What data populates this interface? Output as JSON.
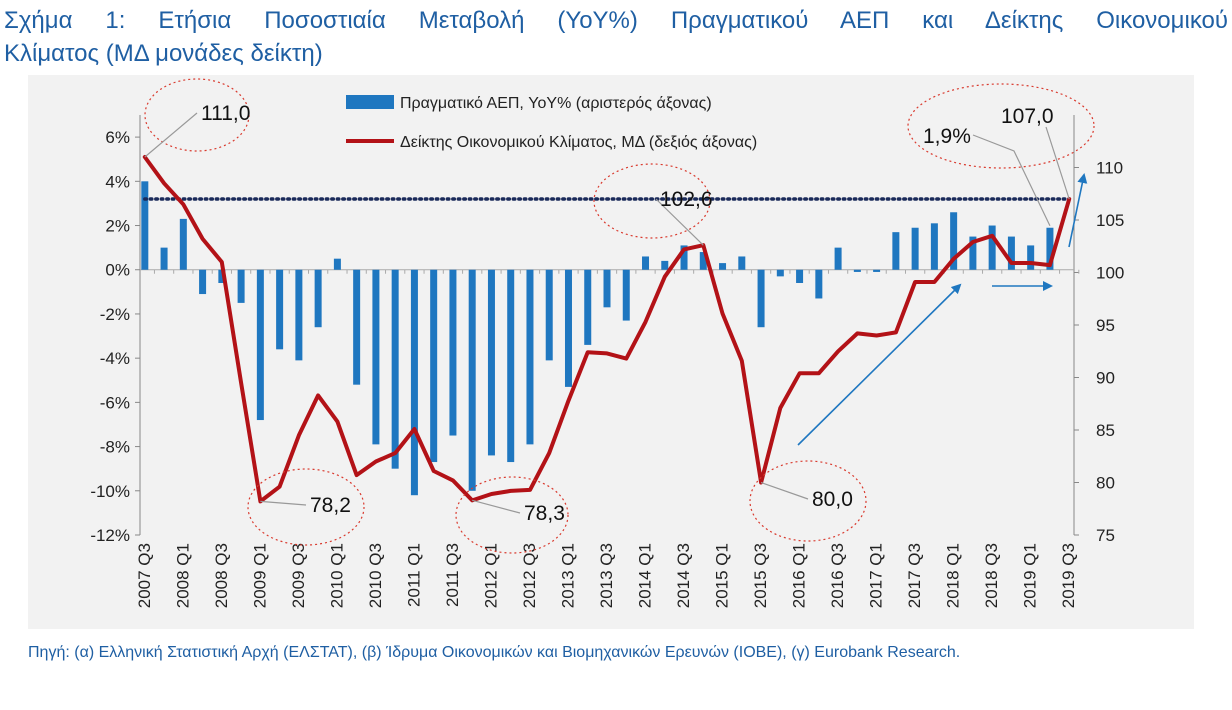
{
  "title": {
    "line1": "Σχήμα 1: Ετήσια Ποσοστιαία Μεταβολή (YoY%) Πραγματικού ΑΕΠ και Δείκτης Οικονομικού",
    "line2": "Κλίματος (ΜΔ μονάδες δείκτη)"
  },
  "source": "Πηγή: (α) Ελληνική Στατιστική Αρχή (ΕΛΣΤΑΤ), (β) Ίδρυμα Οικονομικών και Βιομηχανικών Ερευνών (ΙΟΒΕ), (γ) Eurobank Research.",
  "colors": {
    "title": "#1f5fa3",
    "bars": "#1f77c0",
    "line": "#b31217",
    "dotted": "#1a2a5a",
    "arrows": "#1f77c0",
    "callout_ellipse": "#d93a2e",
    "background": "#f2f2f2"
  },
  "chart_data": {
    "type": "bar+line",
    "title": "",
    "legend_position": "top-center",
    "legend": [
      {
        "label": "Πραγματικό ΑΕΠ, YoY% (αριστερός άξονας)",
        "kind": "bar"
      },
      {
        "label": "Δείκτης Οικονομικού Κλίματος, ΜΔ (δεξιός άξονας)",
        "kind": "line"
      }
    ],
    "categories": [
      "2007 Q3",
      "2007 Q4",
      "2008 Q1",
      "2008 Q2",
      "2008 Q3",
      "2008 Q4",
      "2009 Q1",
      "2009 Q2",
      "2009 Q3",
      "2009 Q4",
      "2010 Q1",
      "2010 Q2",
      "2010 Q3",
      "2010 Q4",
      "2011 Q1",
      "2011 Q2",
      "2011 Q3",
      "2011 Q4",
      "2012 Q1",
      "2012 Q2",
      "2012 Q3",
      "2012 Q4",
      "2013 Q1",
      "2013 Q2",
      "2013 Q3",
      "2013 Q4",
      "2014 Q1",
      "2014 Q2",
      "2014 Q3",
      "2014 Q4",
      "2015 Q1",
      "2015 Q2",
      "2015 Q3",
      "2015 Q4",
      "2016 Q1",
      "2016 Q2",
      "2016 Q3",
      "2016 Q4",
      "2017 Q1",
      "2017 Q2",
      "2017 Q3",
      "2017 Q4",
      "2018 Q1",
      "2018 Q2",
      "2018 Q3",
      "2018 Q4",
      "2019 Q1",
      "2019 Q2",
      "2019 Q3"
    ],
    "x_tick_labels": [
      "2007 Q3",
      "2008 Q1",
      "2008 Q3",
      "2009 Q1",
      "2009 Q3",
      "2010 Q1",
      "2010 Q3",
      "2011 Q1",
      "2011 Q3",
      "2012 Q1",
      "2012 Q3",
      "2013 Q1",
      "2013 Q3",
      "2014 Q1",
      "2014 Q3",
      "2015 Q1",
      "2015 Q3",
      "2016 Q1",
      "2016 Q3",
      "2017 Q1",
      "2017 Q3",
      "2018 Q1",
      "2018 Q3",
      "2019 Q1",
      "2019 Q3"
    ],
    "series": [
      {
        "name": "Πραγματικό ΑΕΠ, YoY% (αριστερός άξονας)",
        "type": "bar",
        "axis": "left",
        "values": [
          4.0,
          1.0,
          2.3,
          -1.1,
          -0.6,
          -1.5,
          -6.8,
          -3.6,
          -4.1,
          -2.6,
          0.5,
          -5.2,
          -7.9,
          -9.0,
          -10.2,
          -8.7,
          -7.5,
          -10.0,
          -8.4,
          -8.7,
          -7.9,
          -4.1,
          -5.3,
          -3.4,
          -1.7,
          -2.3,
          0.6,
          0.4,
          1.1,
          0.8,
          0.3,
          0.6,
          -2.6,
          -0.3,
          -0.6,
          -1.3,
          1.0,
          -0.1,
          -0.1,
          1.7,
          1.9,
          2.1,
          2.6,
          1.5,
          2.0,
          1.5,
          1.1,
          1.9,
          0.0
        ]
      },
      {
        "name": "Δείκτης Οικονομικού Κλίματος, ΜΔ (δεξιός άξονας)",
        "type": "line",
        "axis": "right",
        "values": [
          111.0,
          108.5,
          106.5,
          103.2,
          101.0,
          89.5,
          78.2,
          79.6,
          84.5,
          88.3,
          85.8,
          80.7,
          82.0,
          82.8,
          85.1,
          81.1,
          80.2,
          78.3,
          78.9,
          79.2,
          79.3,
          82.8,
          87.8,
          92.4,
          92.3,
          91.8,
          95.3,
          99.6,
          102.2,
          102.6,
          96.1,
          91.6,
          80.0,
          87.1,
          90.4,
          90.4,
          92.5,
          94.2,
          94.0,
          94.3,
          99.1,
          99.1,
          101.3,
          102.9,
          103.5,
          100.9,
          100.9,
          100.7,
          107.0
        ]
      }
    ],
    "y_left": {
      "min": -12,
      "max": 7,
      "ticks": [
        -12,
        -10,
        -8,
        -6,
        -4,
        -2,
        0,
        2,
        4,
        6
      ],
      "tick_labels": [
        "-12%",
        "-10%",
        "-8%",
        "-6%",
        "-4%",
        "-2%",
        "0%",
        "2%",
        "4%",
        "6%"
      ]
    },
    "y_right": {
      "min": 75,
      "max": 115,
      "ticks": [
        75,
        80,
        85,
        90,
        95,
        100,
        105,
        110
      ],
      "tick_labels": [
        "75",
        "80",
        "85",
        "90",
        "95",
        "100",
        "105",
        "110"
      ]
    },
    "reference_line": {
      "axis": "right",
      "value": 107.0,
      "style": "dotted"
    },
    "annotations": [
      {
        "label": "111,0",
        "index": 0
      },
      {
        "label": "78,2",
        "index": 6
      },
      {
        "label": "78,3",
        "index": 17
      },
      {
        "label": "102,6",
        "index": 29
      },
      {
        "label": "80,0",
        "index": 32
      },
      {
        "label": "1,9%",
        "index": 47
      },
      {
        "label": "107,0",
        "index": 48
      }
    ],
    "grid": false
  }
}
